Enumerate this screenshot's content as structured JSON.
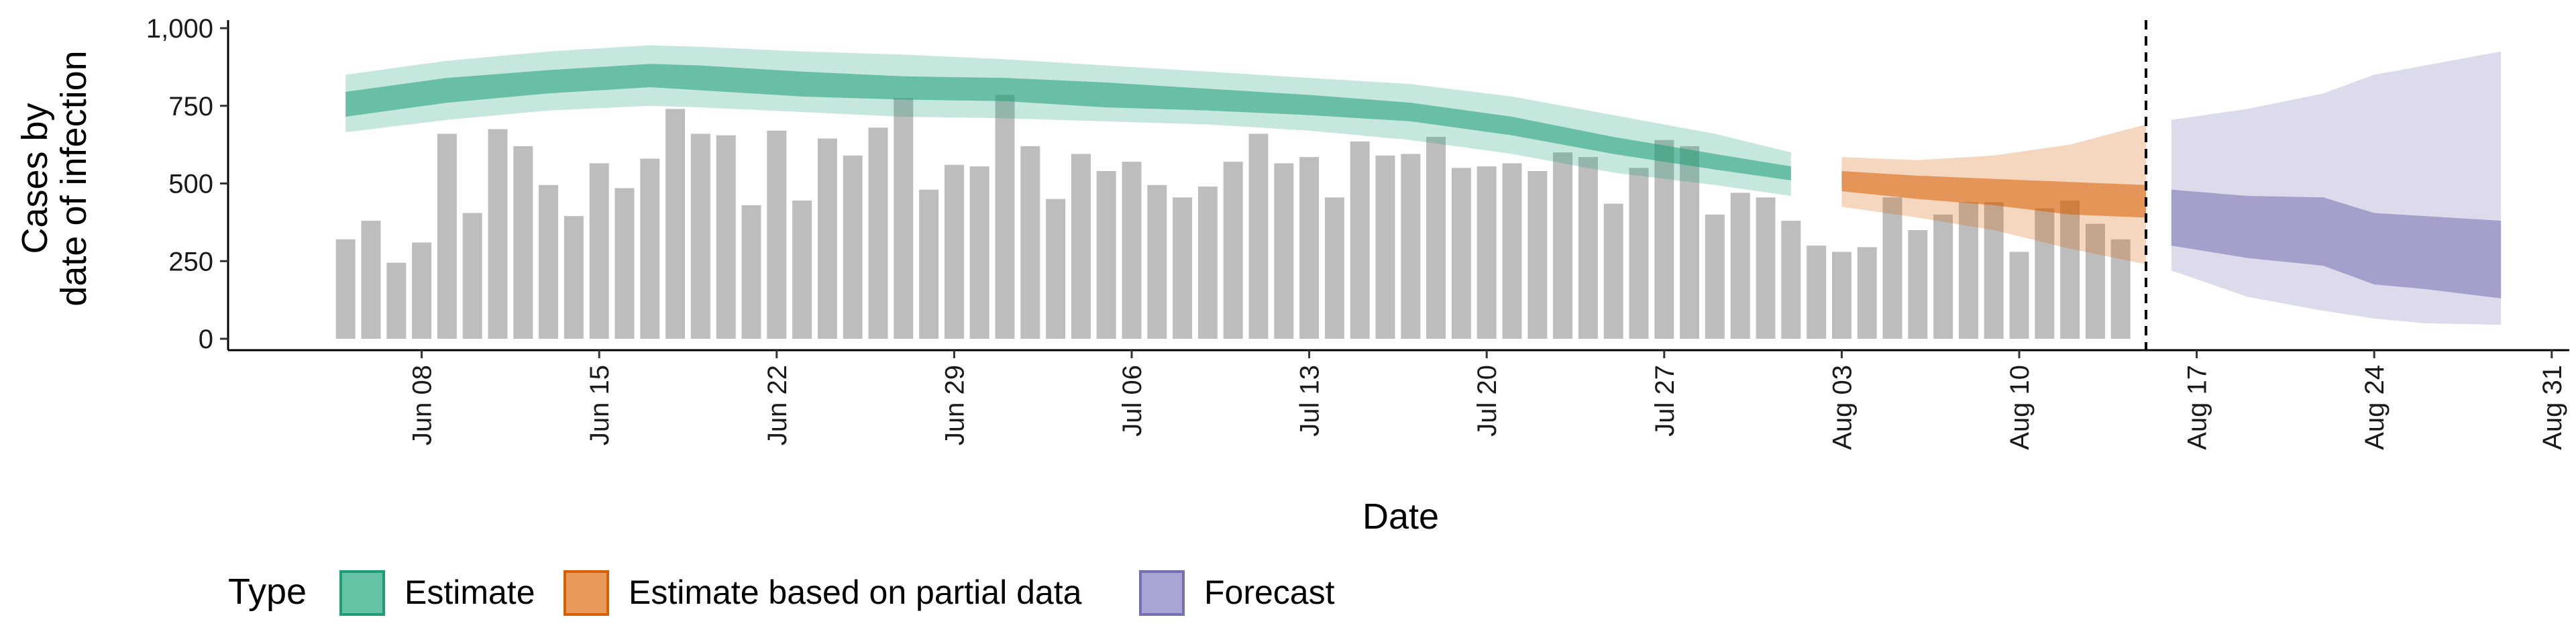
{
  "chart_data": {
    "type": "bar",
    "title": "",
    "xlabel": "Date",
    "ylabel": [
      "Cases by",
      "date of infection"
    ],
    "ylim": [
      0,
      1000
    ],
    "yticks": [
      0,
      250,
      500,
      750,
      1000
    ],
    "ytick_labels": [
      "0",
      "250",
      "500",
      "750",
      "1,000"
    ],
    "xlim": [
      "2020-06-01",
      "2020-09-01"
    ],
    "xticks": [
      "2020-06-08",
      "2020-06-15",
      "2020-06-22",
      "2020-06-29",
      "2020-07-06",
      "2020-07-13",
      "2020-07-20",
      "2020-07-27",
      "2020-08-03",
      "2020-08-10",
      "2020-08-17",
      "2020-08-24",
      "2020-08-31"
    ],
    "xtick_labels": [
      "Jun 08",
      "Jun 15",
      "Jun 22",
      "Jun 29",
      "Jul 06",
      "Jul 13",
      "Jul 20",
      "Jul 27",
      "Aug 03",
      "Aug 10",
      "Aug 17",
      "Aug 24",
      "Aug 31"
    ],
    "vline_date": "2020-08-15",
    "bars": {
      "start_date": "2020-06-05",
      "color": "#bdbdbd",
      "values": [
        320,
        380,
        245,
        310,
        660,
        405,
        675,
        620,
        495,
        395,
        565,
        485,
        580,
        740,
        660,
        655,
        430,
        670,
        445,
        645,
        590,
        680,
        775,
        480,
        560,
        555,
        785,
        620,
        450,
        595,
        540,
        570,
        495,
        455,
        490,
        570,
        660,
        565,
        585,
        455,
        635,
        590,
        595,
        650,
        550,
        555,
        565,
        540,
        600,
        585,
        435,
        550,
        640,
        620,
        400,
        470,
        455,
        380,
        300,
        280,
        295,
        455,
        350,
        400,
        440,
        440,
        280,
        420,
        445,
        370,
        320
      ]
    },
    "series": [
      {
        "name": "Estimate",
        "color": "#1b9e77",
        "dates": [
          "2020-06-05",
          "2020-06-09",
          "2020-06-13",
          "2020-06-17",
          "2020-06-19",
          "2020-06-23",
          "2020-06-27",
          "2020-07-01",
          "2020-07-05",
          "2020-07-09",
          "2020-07-13",
          "2020-07-17",
          "2020-07-21",
          "2020-07-25",
          "2020-07-29",
          "2020-08-01"
        ],
        "inner_low": [
          715,
          760,
          790,
          810,
          800,
          780,
          770,
          765,
          745,
          735,
          720,
          700,
          655,
          595,
          545,
          510
        ],
        "inner_high": [
          795,
          840,
          865,
          885,
          880,
          860,
          845,
          840,
          825,
          805,
          785,
          760,
          715,
          650,
          595,
          555
        ],
        "outer_low": [
          665,
          705,
          735,
          750,
          745,
          730,
          715,
          710,
          700,
          690,
          670,
          640,
          595,
          535,
          495,
          460
        ],
        "outer_high": [
          850,
          895,
          925,
          945,
          940,
          925,
          915,
          900,
          880,
          860,
          840,
          820,
          780,
          720,
          660,
          600
        ]
      },
      {
        "name": "Estimate based on partial data",
        "color": "#d95f02",
        "dates": [
          "2020-08-03",
          "2020-08-06",
          "2020-08-09",
          "2020-08-12",
          "2020-08-15"
        ],
        "inner_low": [
          475,
          450,
          430,
          400,
          390
        ],
        "inner_high": [
          540,
          525,
          515,
          505,
          495
        ],
        "outer_low": [
          425,
          390,
          350,
          290,
          240
        ],
        "outer_high": [
          585,
          575,
          590,
          625,
          690
        ]
      },
      {
        "name": "Forecast",
        "color": "#7570b3",
        "dates": [
          "2020-08-16",
          "2020-08-19",
          "2020-08-22",
          "2020-08-24",
          "2020-08-26",
          "2020-08-29"
        ],
        "inner_low": [
          300,
          260,
          235,
          175,
          160,
          130
        ],
        "inner_high": [
          480,
          460,
          455,
          405,
          395,
          380
        ],
        "outer_low": [
          220,
          135,
          90,
          65,
          50,
          45
        ],
        "outer_high": [
          705,
          740,
          790,
          850,
          880,
          925
        ]
      }
    ],
    "legend": {
      "title": "Type",
      "placement": "bottom",
      "items": [
        {
          "label": "Estimate",
          "fill": "#66c2a5",
          "stroke": "#1b9e77"
        },
        {
          "label": "Estimate based on partial data",
          "fill": "#e89a5a",
          "stroke": "#d95f02"
        },
        {
          "label": "Forecast",
          "fill": "#a8a4d4",
          "stroke": "#7570b3"
        }
      ]
    }
  }
}
